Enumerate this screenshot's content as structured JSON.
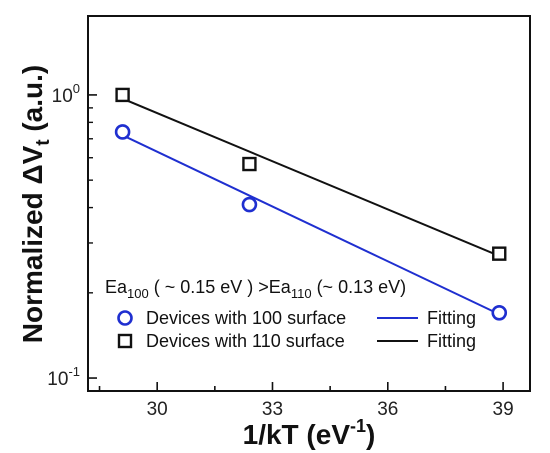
{
  "chart_data": {
    "type": "scatter",
    "xlabel": {
      "main": "1/kT (eV",
      "sup": "-1",
      "end": ")"
    },
    "ylabel": {
      "pre": "Normalized ΔV",
      "sub": "t",
      "post": " (a.u.)"
    },
    "xlim": [
      28.2,
      39.7
    ],
    "ylim": [
      0.09,
      1.9
    ],
    "yscale": "log",
    "x_ticks": [
      30,
      33,
      36,
      39
    ],
    "x_tick_labels": [
      "30",
      "33",
      "36",
      "39"
    ],
    "y_ticks": [
      0.1,
      1
    ],
    "y_tick_labels": [
      {
        "base": "10",
        "exp": "-1"
      },
      {
        "base": "10",
        "exp": "0"
      }
    ],
    "series": [
      {
        "name": "Devices with 100 surface",
        "marker": "circle",
        "color": "#1f2fd0",
        "x": [
          29.1,
          32.4,
          38.9
        ],
        "y": [
          0.74,
          0.41,
          0.17
        ],
        "fit_x": [
          29.1,
          38.9
        ],
        "fit_y": [
          0.72,
          0.168
        ]
      },
      {
        "name": "Devices with 110 surface",
        "marker": "square",
        "color": "#111111",
        "x": [
          29.1,
          32.4,
          38.9
        ],
        "y": [
          1.0,
          0.57,
          0.275
        ],
        "fit_x": [
          29.1,
          38.9
        ],
        "fit_y": [
          0.97,
          0.27
        ]
      }
    ],
    "legend": {
      "placement": "bottom-center",
      "entries": [
        {
          "label": "Devices with 100 surface",
          "marker": "circle",
          "color": "#1f2fd0",
          "fit_label": "Fitting"
        },
        {
          "label": "Devices with 110 surface",
          "marker": "square",
          "color": "#111111",
          "fit_label": "Fitting"
        }
      ]
    },
    "annotation": {
      "p1": "Ea",
      "s1": "100",
      "p2": " ( ~ 0.15 eV ) >Ea",
      "s2": "110",
      "p3": " (~ 0.13 eV)"
    },
    "grid": false
  }
}
